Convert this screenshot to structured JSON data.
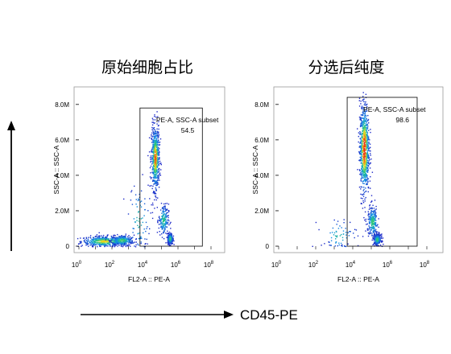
{
  "chart_data": [
    {
      "type": "scatter",
      "title": "原始细胞占比",
      "xlabel": "FL2-A :: PE-A",
      "ylabel": "SSC-A :: SSC-A",
      "x_scale": "log",
      "xlim": [
        1,
        100000000
      ],
      "ylim": [
        0,
        8400000
      ],
      "x_ticks": [
        {
          "base": "10",
          "exp": "0"
        },
        {
          "base": "10",
          "exp": "2"
        },
        {
          "base": "10",
          "exp": "4"
        },
        {
          "base": "10",
          "exp": "6"
        },
        {
          "base": "10",
          "exp": "8"
        }
      ],
      "y_ticks": [
        "0",
        "2.0M",
        "4.0M",
        "6.0M",
        "8.0M"
      ],
      "y_tick_values": [
        0,
        2000000,
        4000000,
        6000000,
        8000000
      ],
      "grid": false,
      "gate": {
        "name": "PE-A, SSC-A subset",
        "percent": "54.5",
        "x_range": [
          5000,
          30000000
        ],
        "y_range": [
          0,
          7800000
        ]
      },
      "populations": [
        {
          "x_log_center": 1.5,
          "x_log_spread": 0.7,
          "y_center": 300000,
          "y_spread": 150000,
          "count": 450
        },
        {
          "x_log_center": 2.6,
          "x_log_spread": 0.35,
          "y_center": 350000,
          "y_spread": 150000,
          "count": 250
        },
        {
          "x_log_center": 3.6,
          "x_log_spread": 0.35,
          "y_center": 1500000,
          "y_spread": 1100000,
          "count": 90
        },
        {
          "x_log_center": 4.6,
          "x_log_spread": 0.12,
          "y_center": 5000000,
          "y_spread": 900000,
          "count": 650
        },
        {
          "x_log_center": 5.1,
          "x_log_spread": 0.15,
          "y_center": 1500000,
          "y_spread": 450000,
          "count": 180
        },
        {
          "x_log_center": 5.5,
          "x_log_spread": 0.08,
          "y_center": 450000,
          "y_spread": 150000,
          "count": 300
        }
      ]
    },
    {
      "type": "scatter",
      "title": "分选后纯度",
      "xlabel": "FL2-A :: PE-A",
      "ylabel": "SSC-A :: SSC-A",
      "x_scale": "log",
      "xlim": [
        1,
        100000000
      ],
      "ylim": [
        0,
        8400000
      ],
      "x_ticks": [
        {
          "base": "10",
          "exp": "0"
        },
        {
          "base": "10",
          "exp": "2"
        },
        {
          "base": "10",
          "exp": "4"
        },
        {
          "base": "10",
          "exp": "6"
        },
        {
          "base": "10",
          "exp": "8"
        }
      ],
      "y_ticks": [
        "0",
        "2.0M",
        "4.0M",
        "6.0M",
        "8.0M"
      ],
      "y_tick_values": [
        0,
        2000000,
        4000000,
        6000000,
        8000000
      ],
      "grid": false,
      "gate": {
        "name": "PE-A, SSC-A subset",
        "percent": "98.6",
        "x_range": [
          5000,
          30000000
        ],
        "y_range": [
          0,
          8400000
        ]
      },
      "populations": [
        {
          "x_log_center": 3.2,
          "x_log_spread": 0.5,
          "y_center": 600000,
          "y_spread": 500000,
          "count": 70
        },
        {
          "x_log_center": 4.6,
          "x_log_spread": 0.13,
          "y_center": 5500000,
          "y_spread": 1300000,
          "count": 800
        },
        {
          "x_log_center": 5.05,
          "x_log_spread": 0.14,
          "y_center": 1400000,
          "y_spread": 450000,
          "count": 220
        },
        {
          "x_log_center": 5.3,
          "x_log_spread": 0.1,
          "y_center": 400000,
          "y_spread": 150000,
          "count": 280
        }
      ]
    }
  ],
  "figure": {
    "y_arrow_label": "",
    "x_arrow_label": "CD45-PE"
  }
}
